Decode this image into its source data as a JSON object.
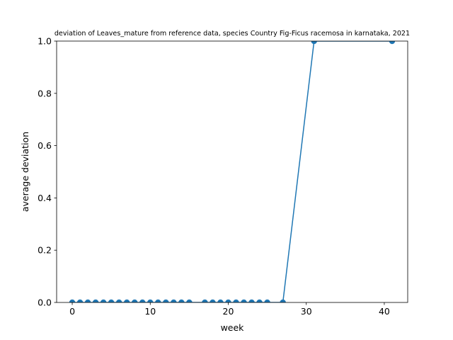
{
  "chart_data": {
    "type": "line",
    "title": "deviation of Leaves_mature from reference data, species Country Fig-Ficus racemosa in karnataka, 2021",
    "xlabel": "week",
    "ylabel": "average deviation",
    "xlim": [
      -2,
      43
    ],
    "ylim": [
      0,
      1.0
    ],
    "xticks": [
      0,
      10,
      20,
      30,
      40
    ],
    "yticks": [
      0.0,
      0.2,
      0.4,
      0.6,
      0.8,
      1.0
    ],
    "xtick_labels": [
      "0",
      "10",
      "20",
      "30",
      "40"
    ],
    "ytick_labels": [
      "0.0",
      "0.2",
      "0.4",
      "0.6",
      "0.8",
      "1.0"
    ],
    "color": "#1f77b4",
    "series": [
      {
        "name": "deviation",
        "x": [
          0,
          1,
          2,
          3,
          4,
          5,
          6,
          7,
          8,
          9,
          10,
          11,
          12,
          13,
          14,
          15,
          17,
          18,
          19,
          20,
          21,
          22,
          23,
          24,
          25,
          27,
          31,
          41
        ],
        "y": [
          0,
          0,
          0,
          0,
          0,
          0,
          0,
          0,
          0,
          0,
          0,
          0,
          0,
          0,
          0,
          0,
          0,
          0,
          0,
          0,
          0,
          0,
          0,
          0,
          0,
          0,
          1,
          1
        ]
      }
    ]
  }
}
